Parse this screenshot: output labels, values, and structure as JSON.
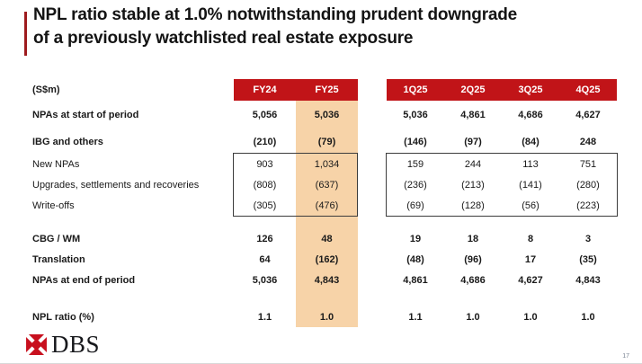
{
  "slide": {
    "title_line1": "NPL ratio stable at 1.0% notwithstanding prudent downgrade",
    "title_line2": "of a previously watchlisted real estate exposure",
    "page_number": "17"
  },
  "table": {
    "unit_label": "(S$m)",
    "annual_headers": [
      "FY24",
      "FY25"
    ],
    "quarterly_headers": [
      "1Q25",
      "2Q25",
      "3Q25",
      "4Q25"
    ],
    "rows": [
      {
        "label": "NPAs at start of period",
        "bold": true,
        "annual": [
          "5,056",
          "5,036"
        ],
        "quarterly": [
          "5,036",
          "4,861",
          "4,686",
          "4,627"
        ]
      },
      {
        "label": "IBG and others",
        "bold": true,
        "annual": [
          "(210)",
          "(79)"
        ],
        "quarterly": [
          "(146)",
          "(97)",
          "(84)",
          "248"
        ]
      },
      {
        "label": "New NPAs",
        "bold": false,
        "annual": [
          "903",
          "1,034"
        ],
        "quarterly": [
          "159",
          "244",
          "113",
          "751"
        ]
      },
      {
        "label": "Upgrades, settlements and recoveries",
        "bold": false,
        "annual": [
          "(808)",
          "(637)"
        ],
        "quarterly": [
          "(236)",
          "(213)",
          "(141)",
          "(280)"
        ]
      },
      {
        "label": "Write-offs",
        "bold": false,
        "annual": [
          "(305)",
          "(476)"
        ],
        "quarterly": [
          "(69)",
          "(128)",
          "(56)",
          "(223)"
        ]
      },
      {
        "label": "CBG / WM",
        "bold": true,
        "annual": [
          "126",
          "48"
        ],
        "quarterly": [
          "19",
          "18",
          "8",
          "3"
        ]
      },
      {
        "label": "Translation",
        "bold": true,
        "annual": [
          "64",
          "(162)"
        ],
        "quarterly": [
          "(48)",
          "(96)",
          "17",
          "(35)"
        ]
      },
      {
        "label": "NPAs at end of period",
        "bold": true,
        "annual": [
          "5,036",
          "4,843"
        ],
        "quarterly": [
          "4,861",
          "4,686",
          "4,627",
          "4,843"
        ]
      },
      {
        "label": "NPL ratio (%)",
        "bold": true,
        "annual": [
          "1.1",
          "1.0"
        ],
        "quarterly": [
          "1.1",
          "1.0",
          "1.0",
          "1.0"
        ]
      }
    ]
  },
  "footer": {
    "logo_text": "DBS"
  },
  "colors": {
    "header_red": "#C11418",
    "highlight_peach": "#F7D3A8",
    "accent_bar": "#9E1B1E",
    "logo_red": "#C8101E"
  }
}
